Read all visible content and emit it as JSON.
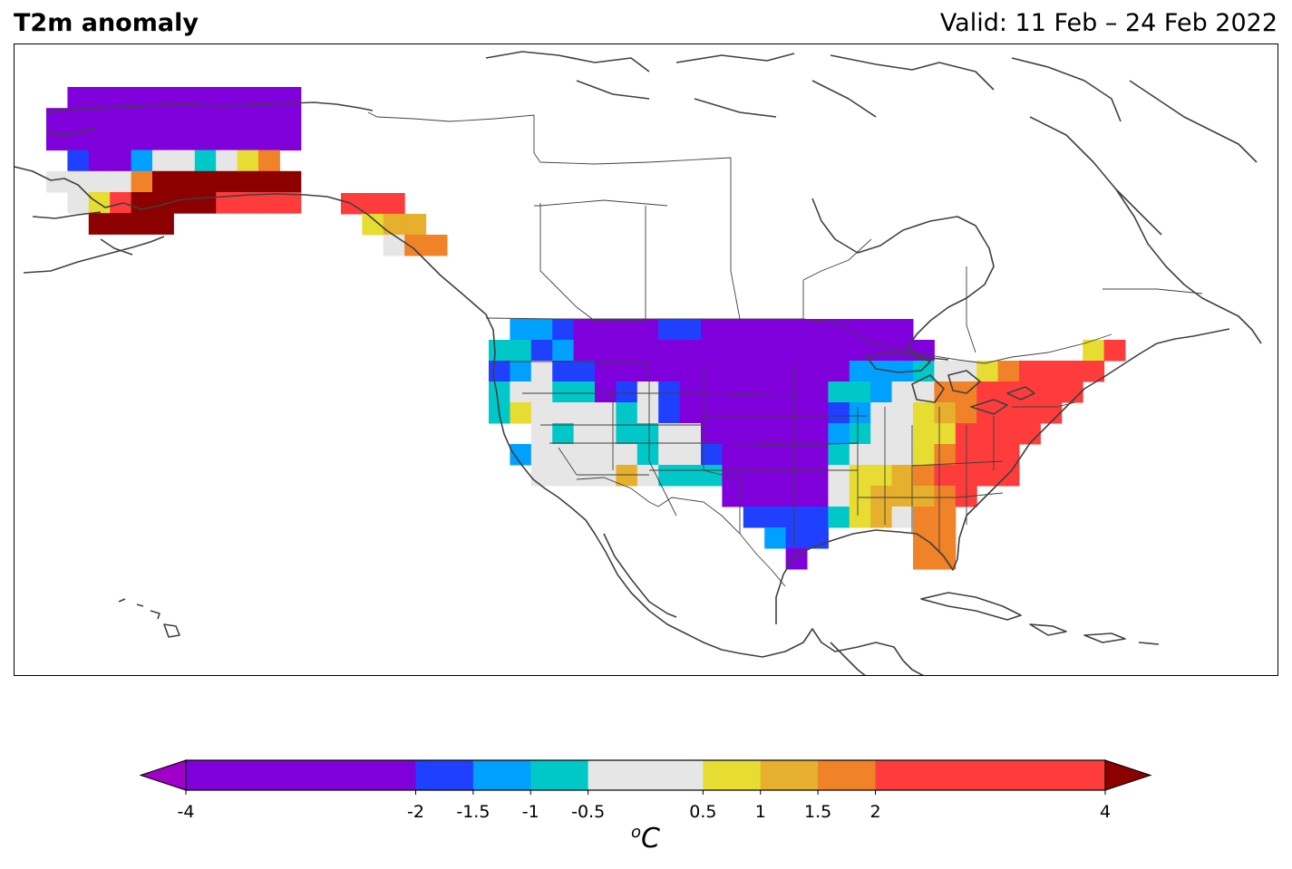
{
  "header": {
    "title": "T2m anomaly",
    "valid": "Valid: 11 Feb – 24 Feb 2022"
  },
  "colorbar": {
    "unit_base": "C",
    "unit_sup": "o",
    "tick_labels": [
      "-4",
      "-2",
      "-1.5",
      "-1",
      "-0.5",
      "0.5",
      "1",
      "1.5",
      "2",
      "4"
    ],
    "levels": [
      -4,
      -2,
      -1.5,
      -1,
      -0.5,
      0.5,
      1,
      1.5,
      2,
      4
    ],
    "colors": [
      "#8000dc",
      "#2040ff",
      "#00a0ff",
      "#00c8c8",
      "#e6e6e6",
      "#e6dc32",
      "#e6af2d",
      "#f08228",
      "#ff3c3c"
    ],
    "under_color": "#a000c8",
    "over_color": "#8c0000"
  },
  "map": {
    "region": "North America",
    "coastline_color": "#404040",
    "border_color": "#404040"
  },
  "chart_data": {
    "type": "heatmap",
    "title": "T2m anomaly",
    "subtitle": "Valid: 11 Feb – 24 Feb 2022",
    "colorbar_label": "oC",
    "colorbar_range": [
      -4,
      4
    ],
    "grid_cell_deg": 2,
    "rows_lat_top": 49,
    "cols_lon_left": -125,
    "cell_classes_legend": {
      "0": "no data",
      "1": "< -4",
      "2": "-4 to -2",
      "3": "-2 to -1.5",
      "4": "-1.5 to -1",
      "5": "-1 to -0.5",
      "6": "-0.5 to 0.5",
      "7": "0.5 to 1",
      "8": "1 to 1.5",
      "9": "1.5 to 2",
      "10": "2 to 4",
      "11": "> 4"
    },
    "conus_rows": [
      [
        0,
        4,
        4,
        3,
        2,
        2,
        2,
        2,
        3,
        3,
        2,
        2,
        2,
        2,
        2,
        2,
        2,
        2,
        2,
        2,
        0,
        0,
        0,
        0,
        0,
        0,
        0,
        0,
        0,
        0
      ],
      [
        5,
        5,
        3,
        4,
        2,
        2,
        2,
        2,
        2,
        2,
        2,
        2,
        2,
        2,
        2,
        2,
        2,
        2,
        2,
        2,
        2,
        0,
        0,
        0,
        0,
        0,
        0,
        0,
        7,
        10
      ],
      [
        3,
        4,
        6,
        3,
        3,
        2,
        2,
        2,
        2,
        2,
        2,
        2,
        2,
        2,
        2,
        2,
        2,
        4,
        4,
        4,
        5,
        6,
        6,
        7,
        9,
        10,
        10,
        10,
        10,
        0
      ],
      [
        5,
        6,
        6,
        5,
        5,
        2,
        3,
        6,
        3,
        2,
        2,
        2,
        2,
        2,
        2,
        2,
        5,
        5,
        4,
        6,
        6,
        9,
        9,
        10,
        10,
        10,
        10,
        10,
        0,
        0
      ],
      [
        5,
        7,
        6,
        6,
        6,
        6,
        5,
        6,
        3,
        2,
        2,
        2,
        2,
        2,
        2,
        2,
        3,
        4,
        6,
        6,
        7,
        8,
        9,
        10,
        10,
        10,
        10,
        0,
        0,
        0
      ],
      [
        0,
        0,
        6,
        5,
        6,
        6,
        5,
        5,
        6,
        6,
        2,
        2,
        2,
        2,
        2,
        2,
        4,
        5,
        6,
        6,
        7,
        7,
        10,
        10,
        10,
        10,
        0,
        0,
        0,
        0
      ],
      [
        0,
        4,
        6,
        6,
        6,
        6,
        6,
        5,
        6,
        6,
        3,
        2,
        2,
        2,
        2,
        2,
        5,
        6,
        6,
        6,
        7,
        9,
        10,
        10,
        10,
        0,
        0,
        0,
        0,
        0
      ],
      [
        0,
        0,
        6,
        6,
        6,
        6,
        8,
        6,
        5,
        5,
        5,
        2,
        2,
        2,
        2,
        2,
        6,
        7,
        7,
        8,
        9,
        10,
        10,
        10,
        10,
        0,
        0,
        0,
        0,
        0
      ],
      [
        0,
        0,
        0,
        0,
        0,
        0,
        0,
        0,
        0,
        0,
        0,
        2,
        2,
        2,
        2,
        2,
        6,
        7,
        8,
        8,
        8,
        9,
        10,
        0,
        0,
        0,
        0,
        0,
        0,
        0
      ],
      [
        0,
        0,
        0,
        0,
        0,
        0,
        0,
        0,
        0,
        0,
        0,
        0,
        3,
        3,
        3,
        3,
        5,
        7,
        8,
        6,
        9,
        9,
        0,
        0,
        0,
        0,
        0,
        0,
        0,
        0
      ],
      [
        0,
        0,
        0,
        0,
        0,
        0,
        0,
        0,
        0,
        0,
        0,
        0,
        0,
        4,
        3,
        3,
        0,
        0,
        0,
        0,
        9,
        9,
        0,
        0,
        0,
        0,
        0,
        0,
        0,
        0
      ],
      [
        0,
        0,
        0,
        0,
        0,
        0,
        0,
        0,
        0,
        0,
        0,
        0,
        0,
        0,
        2,
        0,
        0,
        0,
        0,
        0,
        9,
        9,
        0,
        0,
        0,
        0,
        0,
        0,
        0,
        0
      ]
    ],
    "alaska_rows": [
      [
        0,
        2,
        2,
        2,
        2,
        2,
        2,
        2,
        2,
        2,
        2,
        2
      ],
      [
        2,
        2,
        2,
        2,
        2,
        2,
        2,
        2,
        2,
        2,
        2,
        2
      ],
      [
        2,
        2,
        2,
        2,
        2,
        2,
        2,
        2,
        2,
        2,
        2,
        2
      ],
      [
        0,
        3,
        2,
        2,
        4,
        6,
        6,
        5,
        6,
        7,
        9,
        0
      ],
      [
        6,
        6,
        6,
        6,
        9,
        11,
        11,
        11,
        11,
        11,
        11,
        11
      ],
      [
        0,
        6,
        7,
        10,
        11,
        11,
        11,
        11,
        10,
        10,
        10,
        10
      ],
      [
        0,
        0,
        11,
        11,
        11,
        11,
        0,
        0,
        0,
        0,
        0,
        0
      ]
    ],
    "panhandle_rows": [
      [
        10,
        10,
        10,
        0,
        0
      ],
      [
        0,
        7,
        8,
        8,
        0
      ],
      [
        0,
        0,
        6,
        9,
        9
      ]
    ]
  }
}
